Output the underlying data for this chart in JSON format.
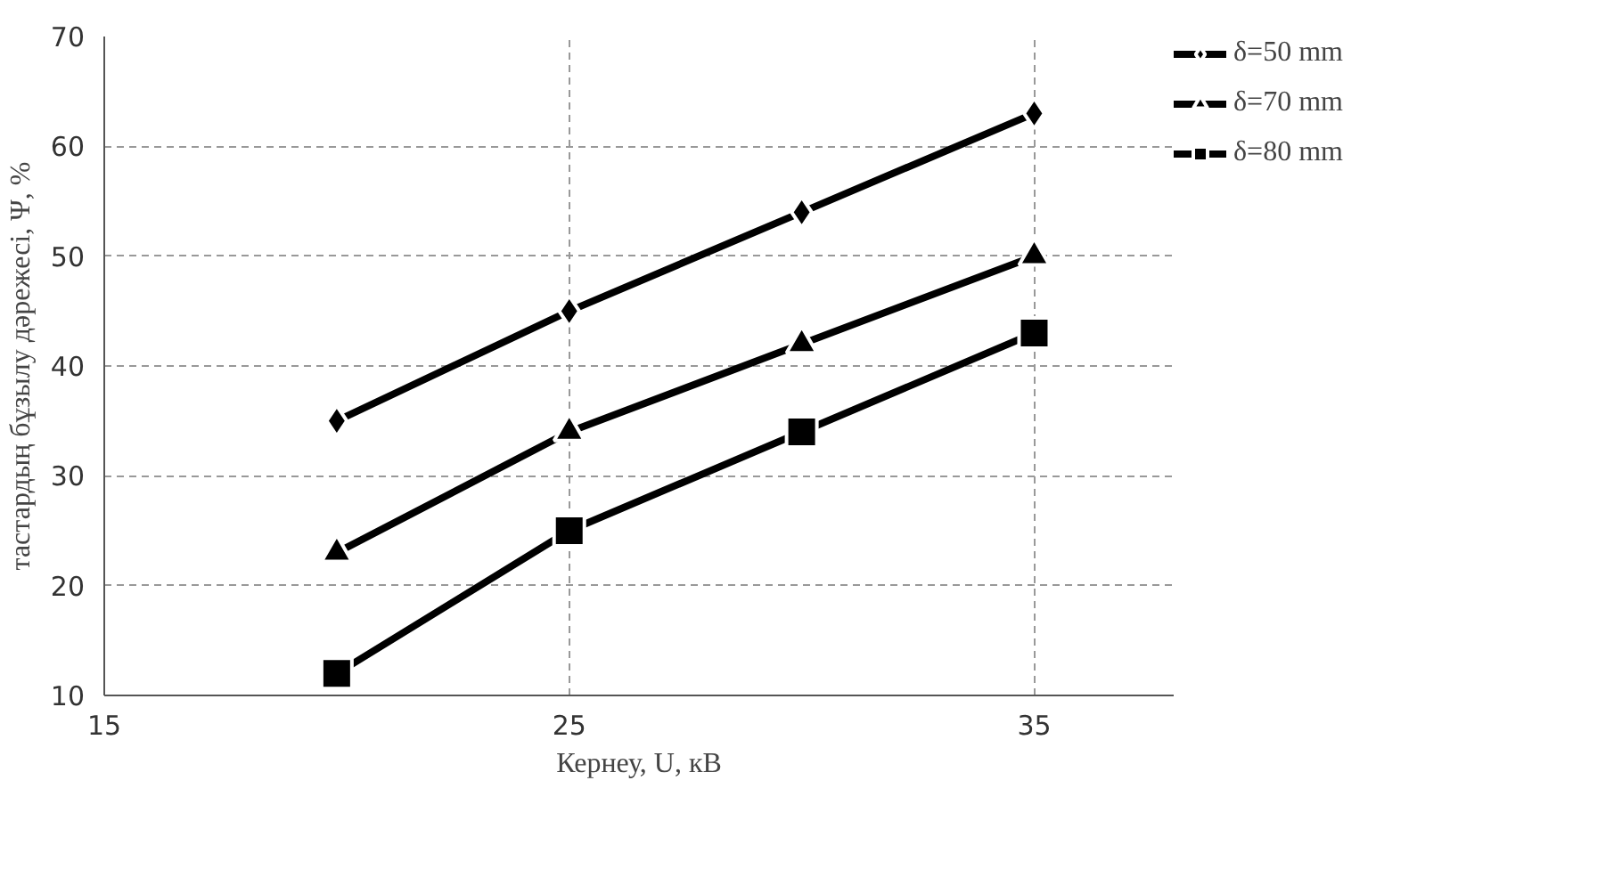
{
  "chart_data": {
    "type": "line",
    "xlabel": "Кернеу, U, кВ",
    "ylabel": "тастардың бұзылу дәрежесі, Ψ, %",
    "x": [
      20,
      25,
      30,
      35
    ],
    "xlim": [
      15,
      38
    ],
    "xticks": [
      15,
      25,
      35
    ],
    "ylim": [
      10,
      70
    ],
    "yticks": [
      10,
      20,
      30,
      40,
      50,
      60,
      70
    ],
    "grid": true,
    "legend": "right",
    "line_style": "solid",
    "series": [
      {
        "name": "δ=50 mm",
        "color": "#000000",
        "marker": "diamond",
        "values": [
          35,
          45,
          54,
          63
        ]
      },
      {
        "name": "δ=70 mm",
        "color": "#000000",
        "marker": "triangle",
        "values": [
          23,
          34,
          42,
          50
        ]
      },
      {
        "name": "δ=80 mm",
        "color": "#000000",
        "marker": "square",
        "values": [
          12,
          25,
          34,
          43
        ]
      }
    ]
  }
}
